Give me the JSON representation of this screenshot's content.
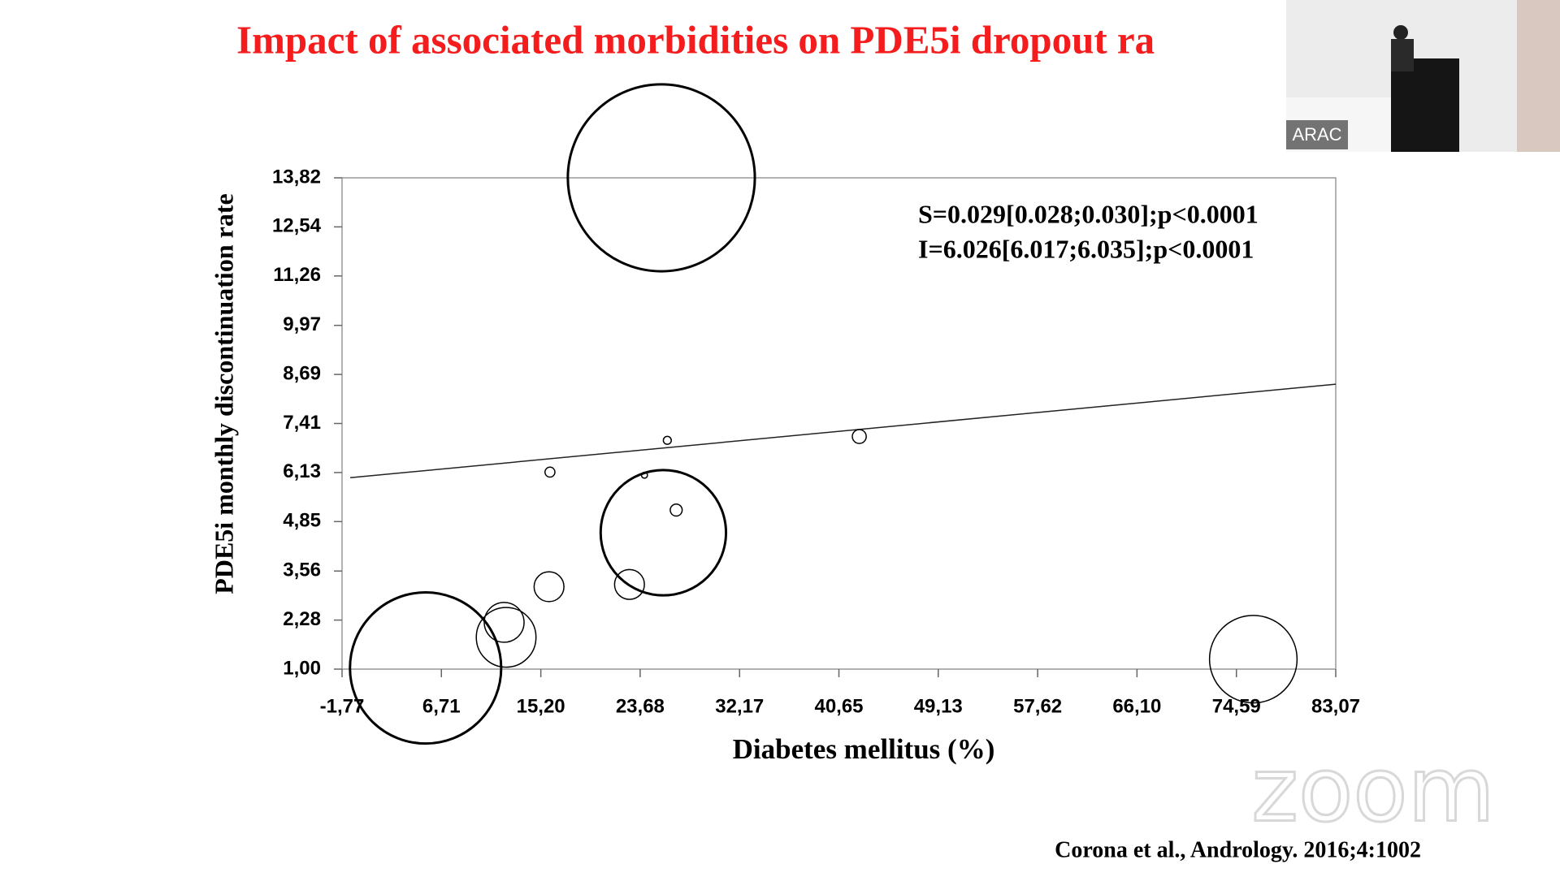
{
  "chart_data": {
    "type": "bubble",
    "title": "Impact of associated morbidities on PDE5i dropout ra",
    "x_label": "Diabetes mellitus (%)",
    "y_label": "PDE5i monthly discontinuation rate",
    "annotations": [
      "S=0.029[0.028;0.030];p<0.0001",
      "I=6.026[6.017;6.035];p<0.0001"
    ],
    "fit": {
      "slope": 0.029,
      "intercept": 6.026
    },
    "color": "#000000",
    "x": [
      25.49,
      5.36,
      12.24,
      12.07,
      15.9,
      22.77,
      25.66,
      26.76,
      15.98,
      24.05,
      26.0,
      42.39,
      76.03
    ],
    "values": [
      13.82,
      1.03,
      1.83,
      2.22,
      3.15,
      3.21,
      4.56,
      5.15,
      6.14,
      6.06,
      6.97,
      7.07,
      1.26
    ],
    "sizes": [
      9.4,
      7.6,
      3.0,
      2.0,
      1.5,
      1.5,
      6.3,
      0.6,
      0.5,
      0.3,
      0.4,
      0.7,
      4.4
    ],
    "xlim": [
      -1.77,
      83.07
    ],
    "xticks": [
      {
        "value": -1.77,
        "label": "-1,77"
      },
      {
        "value": 6.71,
        "label": "6,71"
      },
      {
        "value": 15.2,
        "label": "15,20"
      },
      {
        "value": 23.68,
        "label": "23,68"
      },
      {
        "value": 32.17,
        "label": "32,17"
      },
      {
        "value": 40.65,
        "label": "40,65"
      },
      {
        "value": 49.13,
        "label": "49,13"
      },
      {
        "value": 57.62,
        "label": "57,62"
      },
      {
        "value": 66.1,
        "label": "66,10"
      },
      {
        "value": 74.59,
        "label": "74,59"
      },
      {
        "value": 83.07,
        "label": "83,07"
      }
    ],
    "ylim": [
      1.0,
      13.82
    ],
    "yticks": [
      {
        "value": 1.0,
        "label": "1,00"
      },
      {
        "value": 2.28,
        "label": "2,28"
      },
      {
        "value": 3.56,
        "label": "3,56"
      },
      {
        "value": 4.85,
        "label": "4,85"
      },
      {
        "value": 6.13,
        "label": "6,13"
      },
      {
        "value": 7.41,
        "label": "7,41"
      },
      {
        "value": 8.69,
        "label": "8,69"
      },
      {
        "value": 9.97,
        "label": "9,97"
      },
      {
        "value": 11.26,
        "label": "11,26"
      },
      {
        "value": 12.54,
        "label": "12,54"
      },
      {
        "value": 13.82,
        "label": "13,82"
      }
    ]
  },
  "citation": "Corona et al., Andrology. 2016;4:1002",
  "video": {
    "label": "ARAC"
  },
  "watermark": "zoom"
}
